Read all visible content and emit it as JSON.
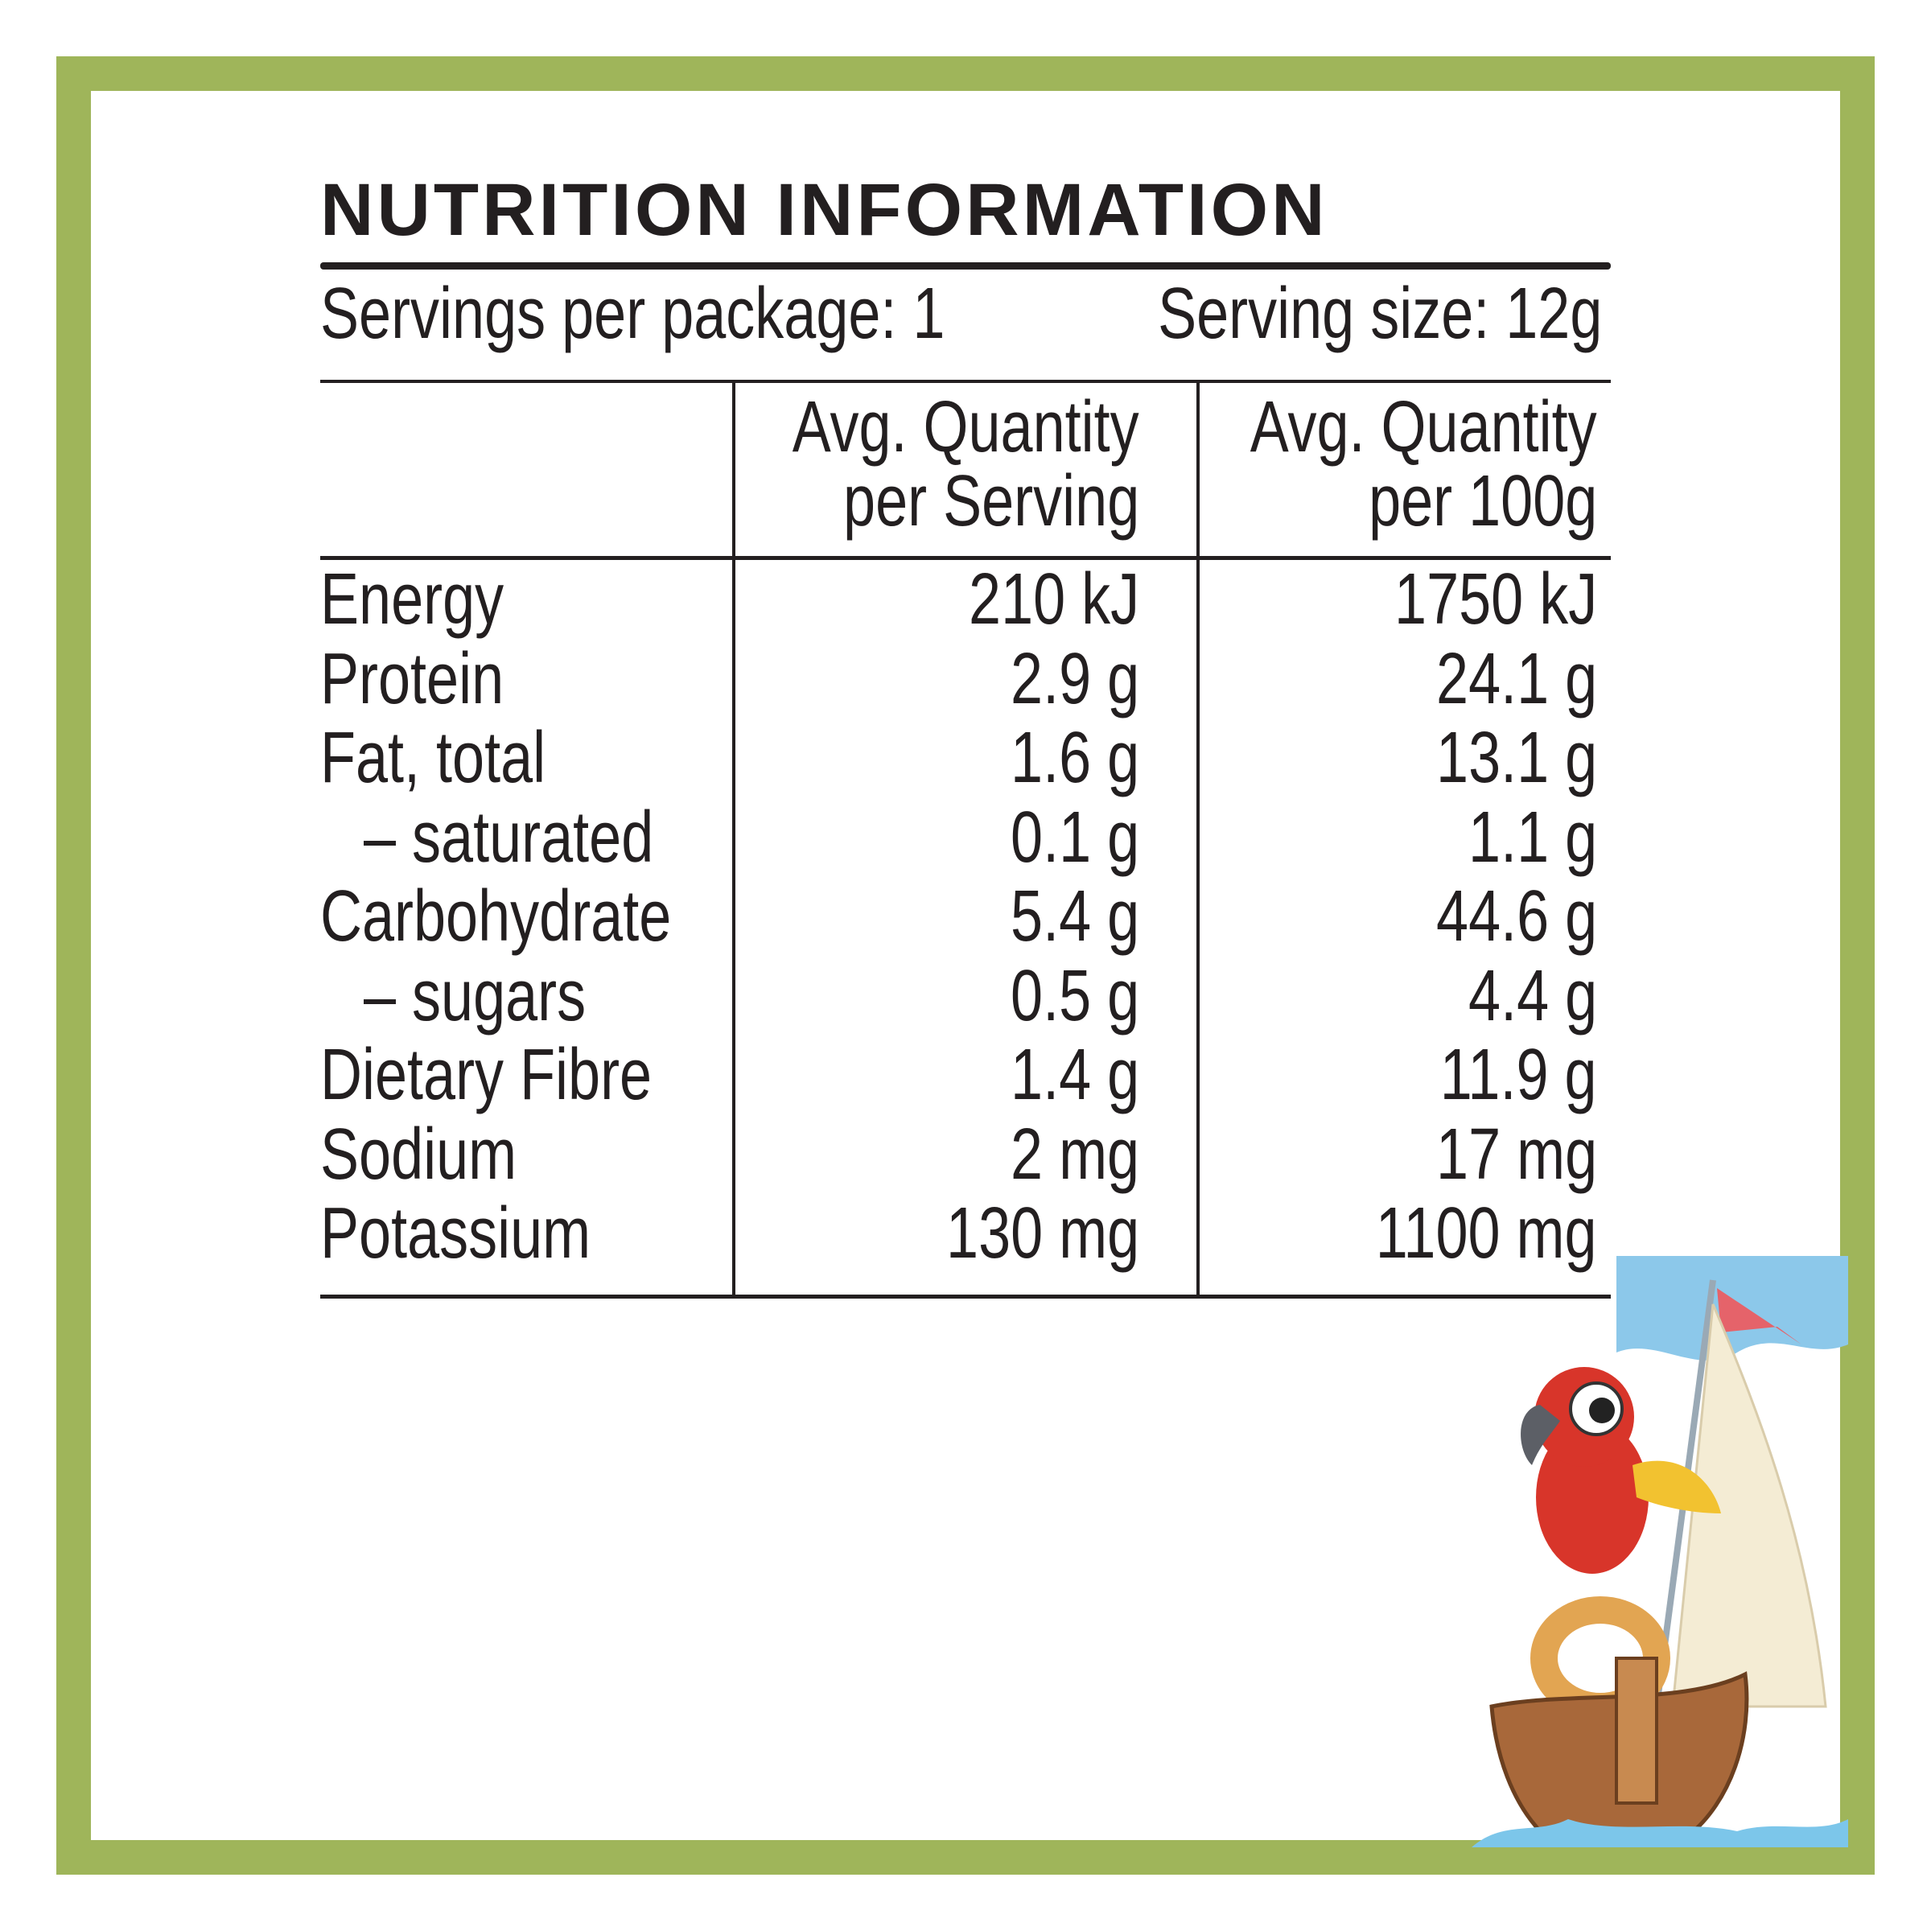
{
  "header": {
    "title": "NUTRITION INFORMATION",
    "servings_per_package": "Servings per package: 1",
    "serving_size": "Serving size: 12g"
  },
  "table": {
    "columns": [
      [
        "Avg. Quantity",
        "per Serving"
      ],
      [
        "Avg. Quantity",
        "per 100g"
      ]
    ],
    "rows": [
      [
        "Energy",
        "210 kJ",
        "1750 kJ"
      ],
      [
        "Protein",
        "2.9 g",
        "24.1 g"
      ],
      [
        "Fat, total",
        "1.6 g",
        "13.1 g"
      ],
      [
        "– saturated",
        "0.1 g",
        "1.1 g"
      ],
      [
        "Carbohydrate",
        "5.4 g",
        "44.6 g"
      ],
      [
        "– sugars",
        "0.5 g",
        "4.4 g"
      ],
      [
        "Dietary Fibre",
        "1.4 g",
        "11.9 g"
      ],
      [
        "Sodium",
        "2 mg",
        "17 mg"
      ],
      [
        "Potassium",
        "130 mg",
        "1100 mg"
      ]
    ]
  }
}
